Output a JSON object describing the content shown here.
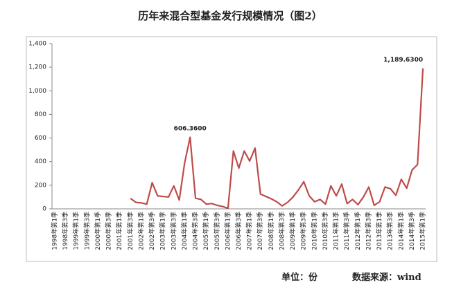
{
  "chart_data": {
    "type": "line",
    "title": "历年来混合型基金发行规模情况（图2）",
    "categories": [
      "1998年第1季",
      null,
      "1998年第3季",
      null,
      "1999年第1季",
      null,
      "1999年第3季",
      null,
      "2000年第1季",
      null,
      "2000年第3季",
      null,
      "2001年第1季",
      null,
      "2001年第3季",
      null,
      "2002年第1季",
      null,
      "2002年第3季",
      null,
      "2003年第1季",
      null,
      "2003年第3季",
      null,
      "2004年第1季",
      null,
      "2004年第3季",
      null,
      "2005年第1季",
      null,
      "2005年第3季",
      null,
      "2006年第1季",
      null,
      "2006年第3季",
      null,
      "2007年第1季",
      null,
      "2007年第3季",
      null,
      "2008年第1季",
      null,
      "2008年第3季",
      null,
      "2009年第1季",
      null,
      "2009年第3季",
      null,
      "2010年第1季",
      null,
      "2010年第3季",
      null,
      "2011年第1季",
      null,
      "2011年第3季",
      null,
      "2012年第1季",
      null,
      "2012年第3季",
      null,
      "2013年第1季",
      null,
      "2013年第3季",
      null,
      "2014年第1季",
      null,
      "2014年第3季",
      null,
      "2015年第1季"
    ],
    "series": [
      {
        "color": "#be4b48",
        "values": [
          null,
          null,
          null,
          null,
          null,
          null,
          null,
          null,
          null,
          null,
          null,
          null,
          null,
          null,
          88,
          55,
          50,
          40,
          222,
          110,
          105,
          100,
          195,
          75,
          390,
          606.36,
          90,
          80,
          40,
          45,
          30,
          20,
          5,
          490,
          345,
          490,
          405,
          515,
          125,
          105,
          85,
          60,
          25,
          55,
          100,
          160,
          230,
          110,
          60,
          80,
          40,
          195,
          110,
          210,
          45,
          80,
          35,
          100,
          185,
          30,
          60,
          185,
          170,
          115,
          250,
          175,
          330,
          375,
          1189.63
        ],
        "value_labels": [
          null,
          null,
          null,
          null,
          null,
          null,
          null,
          null,
          null,
          null,
          null,
          null,
          null,
          null,
          null,
          null,
          null,
          null,
          null,
          null,
          null,
          null,
          null,
          null,
          null,
          "606.3600",
          null,
          null,
          null,
          null,
          null,
          null,
          null,
          null,
          null,
          null,
          null,
          null,
          null,
          null,
          null,
          null,
          null,
          null,
          null,
          null,
          null,
          null,
          null,
          null,
          null,
          null,
          null,
          null,
          null,
          null,
          null,
          null,
          null,
          null,
          null,
          null,
          null,
          null,
          null,
          null,
          null,
          null,
          "1,189.6300"
        ]
      }
    ],
    "ylim": [
      0,
      1400
    ],
    "yticks": [
      0,
      200,
      400,
      600,
      800,
      {
        "value": 1000,
        "label": "1,000"
      },
      {
        "value": 1200,
        "label": "1,200"
      },
      {
        "value": 1400,
        "label": "1,400"
      }
    ],
    "grid": false,
    "unit_note": "单位：份",
    "source_note": "数据来源：wind"
  }
}
